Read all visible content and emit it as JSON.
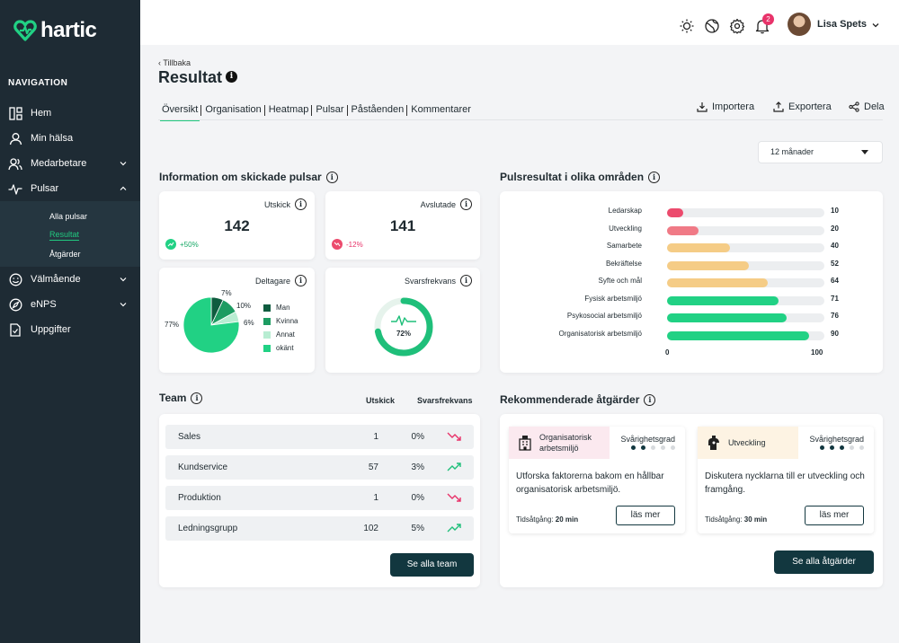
{
  "app": {
    "name": "hartic"
  },
  "nav": {
    "heading": "NAVIGATION",
    "items": [
      {
        "label": "Hem",
        "icon": "dashboard-icon"
      },
      {
        "label": "Min hälsa",
        "icon": "user-icon"
      },
      {
        "label": "Medarbetare",
        "icon": "users-icon"
      },
      {
        "label": "Pulsar",
        "icon": "pulse-icon"
      },
      {
        "label": "Välmående",
        "icon": "smile-icon"
      },
      {
        "label": "eNPS",
        "icon": "compass-icon"
      },
      {
        "label": "Uppgifter",
        "icon": "task-icon"
      }
    ],
    "sub": [
      {
        "label": "Alla pulsar"
      },
      {
        "label": "Resultat"
      },
      {
        "label": "Åtgärder"
      }
    ]
  },
  "topbar": {
    "notifications": "2",
    "user_name": "Lisa Spets"
  },
  "header": {
    "back": "Tillbaka",
    "title": "Resultat"
  },
  "tabs": [
    "Översikt",
    "Organisation",
    "Heatmap",
    "Pulsar",
    "Påståenden",
    "Kommentarer"
  ],
  "actions": {
    "import": "Importera",
    "export": "Exportera",
    "share": "Dela"
  },
  "period": {
    "selected": "12 månader"
  },
  "info_section": {
    "title": "Information om skickade pulsar",
    "sent": {
      "label": "Utskick",
      "value": "142",
      "trend": "+50%"
    },
    "completed": {
      "label": "Avslutade",
      "value": "141",
      "trend": "-12%"
    },
    "participants": {
      "label": "Deltagare",
      "slices": [
        {
          "name": "Man",
          "percent": 7,
          "label": "7%",
          "color": "#0f5c3f"
        },
        {
          "name": "Kvinna",
          "percent": 10,
          "label": "10%",
          "color": "#1d9c62"
        },
        {
          "name": "Annat",
          "percent": 6,
          "label": "6%",
          "color": "#b8edd2"
        },
        {
          "name": "okänt",
          "percent": 77,
          "label": "77%",
          "color": "#21d184"
        }
      ]
    },
    "response_rate": {
      "label": "Svarsfrekvans",
      "value": "72%",
      "fraction": 0.72
    }
  },
  "pulse_results": {
    "title": "Pulsresultat i olika områden",
    "axis_min": "0",
    "axis_max": "100",
    "items": [
      {
        "label": "Ledarskap",
        "value": 10,
        "text": "10",
        "color": "#ec4b6d"
      },
      {
        "label": "Utveckling",
        "value": 20,
        "text": "20",
        "color": "#f07a86"
      },
      {
        "label": "Samarbete",
        "value": 40,
        "text": "40",
        "color": "#f5cc86"
      },
      {
        "label": "Bekräftelse",
        "value": 52,
        "text": "52",
        "color": "#f5cc86"
      },
      {
        "label": "Syfte och mål",
        "value": 64,
        "text": "64",
        "color": "#f5cc86"
      },
      {
        "label": "Fysisk arbetsmiljö",
        "value": 71,
        "text": "71",
        "color": "#21d184"
      },
      {
        "label": "Psykosocial arbetsmiljö",
        "value": 76,
        "text": "76",
        "color": "#21d184"
      },
      {
        "label": "Organisatorisk arbetsmiljö",
        "value": 90,
        "text": "90",
        "color": "#21d184"
      }
    ]
  },
  "team": {
    "title": "Team",
    "col_sent": "Utskick",
    "col_rate": "Svarsfrekvans",
    "rows": [
      {
        "name": "Sales",
        "sent": "1",
        "rate": "0%",
        "trend": "down"
      },
      {
        "name": "Kundservice",
        "sent": "57",
        "rate": "3%",
        "trend": "up"
      },
      {
        "name": "Produktion",
        "sent": "1",
        "rate": "0%",
        "trend": "down"
      },
      {
        "name": "Ledningsgrupp",
        "sent": "102",
        "rate": "5%",
        "trend": "up"
      }
    ],
    "button": "Se alla team"
  },
  "recommendations": {
    "title": "Rekommenderade åtgärder",
    "cards": [
      {
        "tag": "Organisatorisk arbetsmiljö",
        "difficulty_label": "Svårighetsgrad",
        "difficulty": 2,
        "desc": "Utforska faktorerna bakom en hållbar organisatorisk arbetsmiljö.",
        "time_label": "Tidsåtgång:",
        "time": "20 min",
        "button": "läs mer",
        "tag_bg": "#fbe9ef"
      },
      {
        "tag": "Utveckling",
        "difficulty_label": "Svårighetsgrad",
        "difficulty": 3,
        "desc": "Diskutera nycklarna till er utveckling och framgång.",
        "time_label": "Tidsåtgång:",
        "time": "30 min",
        "button": "läs mer",
        "tag_bg": "#fdf3e3"
      }
    ],
    "button": "Se alla åtgärder"
  }
}
